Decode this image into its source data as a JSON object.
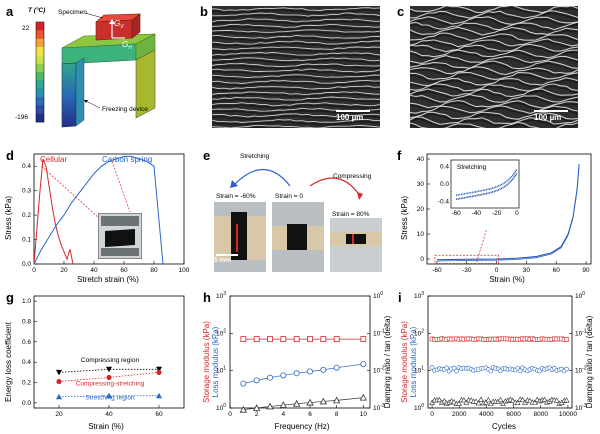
{
  "panel_a": {
    "letter": "a",
    "temp_title": "T (°C)",
    "temp_top": "22",
    "temp_bottom": "-196",
    "specimen_label": "Specimen",
    "gv_label": "G",
    "gv_sub": "V",
    "gh_label": "G",
    "gh_sub": "H",
    "freezing_label": "Freezing device",
    "colorbar": [
      "#d7232a",
      "#e8542b",
      "#f3a13a",
      "#f7e046",
      "#cfe24a",
      "#8fcf4c",
      "#4cb765",
      "#2fa88c",
      "#2b8fb0",
      "#2a6ab6",
      "#2c49a5",
      "#233089"
    ]
  },
  "panel_b": {
    "letter": "b",
    "scale": "100 µm"
  },
  "panel_c": {
    "letter": "c",
    "scale": "100 µm"
  },
  "panel_d": {
    "letter": "d",
    "ylabel": "Stress (kPa)",
    "xlabel": "Stretch strain (%)",
    "series_cellular": "Cellular",
    "series_spring": "Carbon spring",
    "xticks": [
      "0",
      "20",
      "40",
      "60",
      "80",
      "100"
    ],
    "yticks": [
      "0.0",
      "0.1",
      "0.2",
      "0.3",
      "0.4"
    ]
  },
  "panel_e": {
    "letter": "e",
    "stretching": "Stretching",
    "compressing": "Compressing",
    "strain_m60": "Strain = -60%",
    "strain_0": "Strain = 0",
    "strain_80": "Strain = 80%",
    "scale": "5 mm"
  },
  "panel_f": {
    "letter": "f",
    "ylabel": "Stress (kPa)",
    "xlabel": "Strain (%)",
    "xticks": [
      "-60",
      "-30",
      "0",
      "30",
      "60",
      "90"
    ],
    "yticks": [
      "0",
      "10",
      "20",
      "30",
      "40"
    ],
    "inset_label": "Stretching",
    "inset_xticks": [
      "-60",
      "-40",
      "-20",
      "0"
    ],
    "inset_yticks": [
      "0.4",
      "0.0",
      "-0.4"
    ]
  },
  "panel_g": {
    "letter": "g",
    "ylabel": "Energy loss coefficient",
    "xlabel": "Strain (%)",
    "xticks": [
      "20",
      "40",
      "60"
    ],
    "yticks": [
      "0.0",
      "0.2",
      "0.4",
      "0.6",
      "0.8",
      "1.0"
    ],
    "label_comp": "Compressing region",
    "label_cs": "Compressing-stretching",
    "label_str": "Stretching region"
  },
  "panel_h": {
    "letter": "h",
    "ylabel_storage": "Storage modulus (kPa)",
    "ylabel_loss": "Loss modulus (kPa)",
    "ylabel_right": "Damping ratio / tan (delta)",
    "xlabel": "Frequency (Hz)",
    "xticks": [
      "0",
      "2",
      "4",
      "6",
      "8",
      "10"
    ]
  },
  "panel_i": {
    "letter": "i",
    "ylabel_storage": "Storage modulus (kPa)",
    "ylabel_loss": "Loss modulus (kPa)",
    "ylabel_right": "Damping ratio / tan (delta)",
    "xlabel": "Cycles",
    "xticks": [
      "0",
      "2000",
      "4000",
      "6000",
      "8000",
      "10000"
    ]
  },
  "colors": {
    "red": "#d62728",
    "blue": "#2b66c4",
    "darkblue": "#1f4fb0",
    "black": "#000000"
  },
  "chart_data": [
    {
      "id": "d",
      "type": "line",
      "xlabel": "Stretch strain (%)",
      "ylabel": "Stress (kPa)",
      "xlim": [
        0,
        100
      ],
      "ylim": [
        0,
        0.45
      ],
      "series": [
        {
          "name": "Cellular",
          "x": [
            0,
            2,
            4,
            6,
            8,
            10,
            12,
            14,
            16,
            18,
            20,
            22,
            24,
            26
          ],
          "y": [
            0,
            0.15,
            0.3,
            0.43,
            0.4,
            0.32,
            0.24,
            0.17,
            0.12,
            0.08,
            0.05,
            0.02,
            0.06,
            0.0
          ]
        },
        {
          "name": "Carbon spring",
          "x": [
            0,
            5,
            10,
            15,
            20,
            25,
            30,
            35,
            40,
            45,
            50,
            55,
            60,
            65,
            70,
            75,
            80,
            83,
            86
          ],
          "y": [
            0,
            0.06,
            0.11,
            0.16,
            0.2,
            0.25,
            0.29,
            0.33,
            0.37,
            0.4,
            0.42,
            0.43,
            0.44,
            0.44,
            0.43,
            0.42,
            0.4,
            0.2,
            0.0
          ]
        }
      ]
    },
    {
      "id": "f",
      "type": "line",
      "xlabel": "Strain (%)",
      "ylabel": "Stress (kPa)",
      "xlim": [
        -70,
        95
      ],
      "ylim": [
        -2,
        42
      ],
      "series": [
        {
          "x": [
            -60,
            -40,
            -20,
            0,
            20,
            40,
            55,
            65,
            72,
            77,
            81,
            83
          ],
          "y": [
            -0.3,
            -0.15,
            -0.05,
            0,
            0.3,
            1.0,
            2.5,
            5,
            10,
            17,
            28,
            38
          ]
        }
      ]
    },
    {
      "id": "g",
      "type": "scatter",
      "xlabel": "Strain (%)",
      "ylabel": "Energy loss coefficient",
      "xlim": [
        10,
        70
      ],
      "ylim": [
        -0.05,
        1.05
      ],
      "series": [
        {
          "name": "Compressing region",
          "x": [
            20,
            40,
            60
          ],
          "y": [
            0.3,
            0.33,
            0.33
          ]
        },
        {
          "name": "Compressing-stretching",
          "x": [
            20,
            40,
            60
          ],
          "y": [
            0.21,
            0.25,
            0.3
          ]
        },
        {
          "name": "Stretching region",
          "x": [
            20,
            40,
            60
          ],
          "y": [
            0.06,
            0.07,
            0.07
          ]
        }
      ]
    },
    {
      "id": "h",
      "type": "scatter",
      "xlabel": "Frequency (Hz)",
      "xlim": [
        0,
        10.5
      ],
      "series": [
        {
          "name": "Storage modulus",
          "x": [
            1,
            2,
            3,
            4,
            5,
            6,
            7,
            8,
            10
          ],
          "y": [
            70,
            70,
            70,
            70,
            70,
            70,
            70,
            70,
            70
          ]
        },
        {
          "name": "Loss modulus",
          "x": [
            1,
            2,
            3,
            4,
            5,
            6,
            7,
            8,
            10
          ],
          "y": [
            4.5,
            5.5,
            6.5,
            7.5,
            8.5,
            9.5,
            10.5,
            12,
            15
          ]
        },
        {
          "name": "Damping ratio",
          "x": [
            1,
            2,
            3,
            4,
            5,
            6,
            7,
            8,
            10
          ],
          "y": [
            0.9,
            1.0,
            1.1,
            1.2,
            1.3,
            1.4,
            1.5,
            1.6,
            1.9
          ]
        }
      ]
    },
    {
      "id": "i",
      "type": "scatter",
      "xlabel": "Cycles",
      "xlim": [
        -300,
        10300
      ],
      "series": [
        {
          "name": "Storage modulus",
          "y_level": 70
        },
        {
          "name": "Loss modulus",
          "y_level": 11
        },
        {
          "name": "Damping ratio",
          "y_level": 1.5
        }
      ]
    }
  ]
}
